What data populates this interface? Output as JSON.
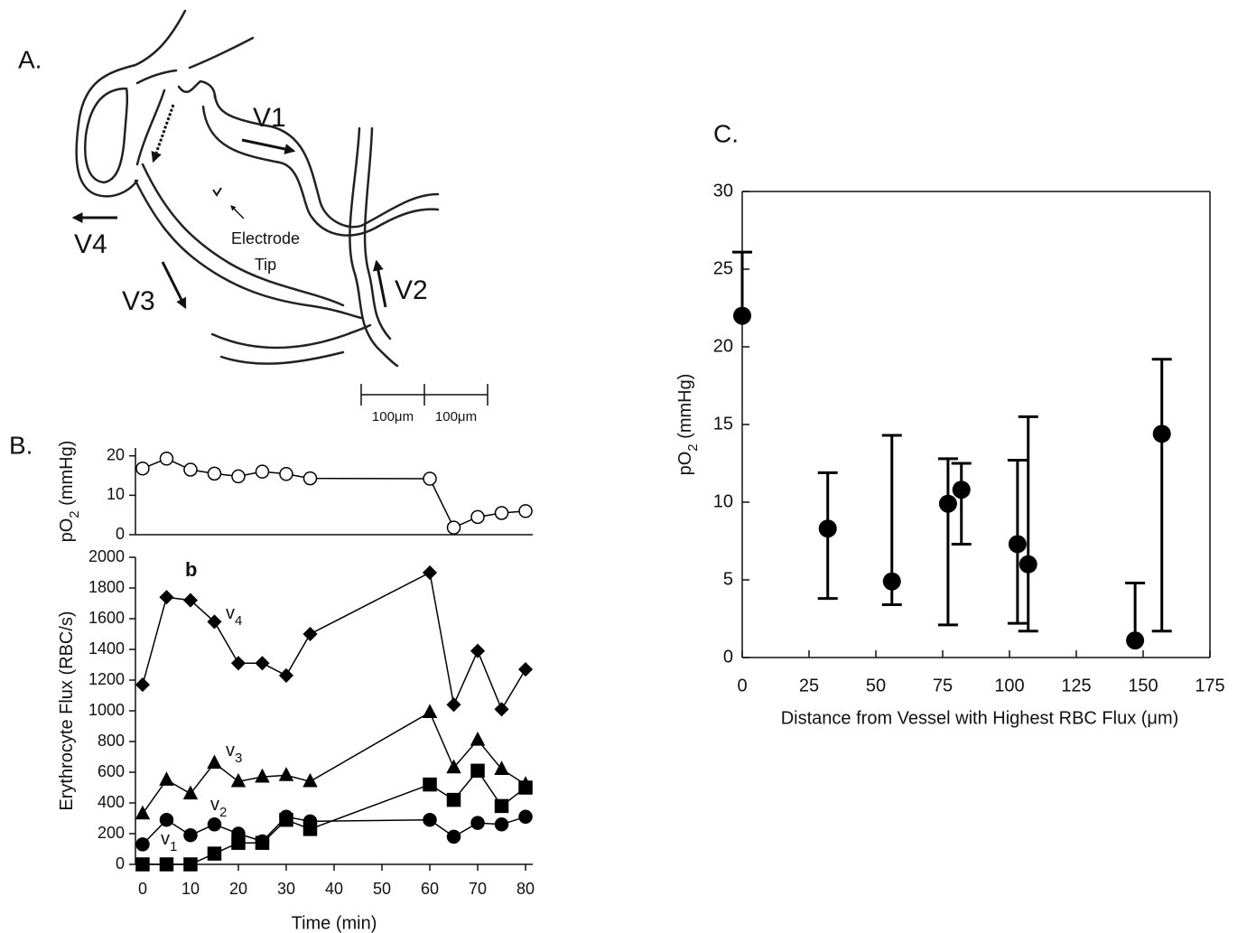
{
  "panel_a": {
    "label": "A.",
    "vessels": [
      "V1",
      "V2",
      "V3",
      "V4"
    ],
    "electrode": [
      "Electrode",
      "Tip"
    ],
    "scale_bar": [
      "100μm",
      "100μm"
    ]
  },
  "chart_data": [
    {
      "type": "line",
      "panel_label": "B.",
      "y_label": "pO2 (mmHg)",
      "x": [
        0,
        5,
        10,
        15,
        20,
        25,
        30,
        35,
        60,
        65,
        70,
        75,
        80
      ],
      "series": [
        {
          "values": [
            16.8,
            19.3,
            16.5,
            15.5,
            14.8,
            16,
            15.4,
            14.3,
            14.2,
            1.8,
            4.5,
            5.5,
            6
          ],
          "color": "#000000",
          "marker": "open-circle"
        }
      ],
      "xlim": [
        -1.5,
        81.5
      ],
      "ylim": [
        0,
        22
      ],
      "yticks": [
        0,
        10,
        20
      ]
    },
    {
      "type": "line",
      "annotation": "b",
      "x_label": "Time (min)",
      "y_label": "Erythrocyte Flux (RBC/s)",
      "x": [
        0,
        5,
        10,
        15,
        20,
        25,
        30,
        35,
        60,
        65,
        70,
        75,
        80
      ],
      "series": [
        {
          "name": "v4",
          "color": "#000000",
          "marker": "diamond",
          "values": [
            1170,
            1740,
            1720,
            1580,
            1310,
            1310,
            1230,
            1500,
            1900,
            1040,
            1390,
            1010,
            1270
          ]
        },
        {
          "name": "v3",
          "color": "#000000",
          "marker": "triangle",
          "values": [
            330,
            550,
            460,
            660,
            540,
            570,
            580,
            540,
            990,
            630,
            810,
            620,
            520
          ]
        },
        {
          "name": "v2",
          "color": "#000000",
          "marker": "circle",
          "values": [
            130,
            290,
            190,
            260,
            200,
            150,
            310,
            280,
            290,
            180,
            270,
            260,
            310
          ]
        },
        {
          "name": "v1",
          "color": "#000000",
          "marker": "square",
          "values": [
            0,
            0,
            0,
            70,
            140,
            140,
            290,
            230,
            520,
            420,
            610,
            380,
            500
          ]
        }
      ],
      "xlim": [
        -1.5,
        81.5
      ],
      "ylim": [
        0,
        2000
      ],
      "xticks": [
        0,
        10,
        20,
        30,
        40,
        50,
        60,
        70,
        80
      ],
      "yticks": [
        0,
        200,
        400,
        600,
        800,
        1000,
        1200,
        1400,
        1600,
        1800,
        2000
      ]
    },
    {
      "type": "scatter",
      "panel_label": "C.",
      "x_label": "Distance from Vessel with Highest RBC Flux (μm)",
      "y_label": "pO2 (mmHg)",
      "x": [
        0,
        32,
        56,
        77,
        82,
        103,
        107,
        147,
        157
      ],
      "values": [
        22,
        8.3,
        4.9,
        9.9,
        10.8,
        7.3,
        6.0,
        1.1,
        14.4
      ],
      "yerr_plus": [
        4.1,
        3.6,
        9.4,
        2.9,
        1.7,
        5.4,
        9.5,
        3.7,
        4.8
      ],
      "yerr_minus": [
        null,
        4.5,
        1.5,
        7.8,
        3.5,
        5.1,
        4.3,
        null,
        12.7
      ],
      "color": "#000000",
      "frame": true,
      "xlim": [
        0,
        175
      ],
      "ylim": [
        0,
        30
      ],
      "xticks": [
        0,
        25,
        50,
        75,
        100,
        125,
        150,
        175
      ],
      "yticks": [
        0,
        5,
        10,
        15,
        20,
        25,
        30
      ]
    }
  ]
}
